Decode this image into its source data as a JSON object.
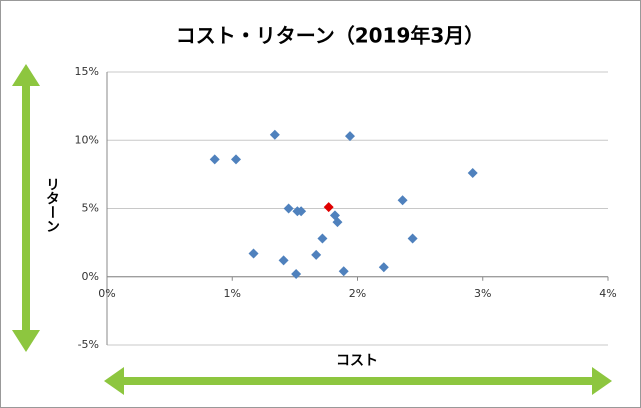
{
  "chart_data": {
    "type": "scatter",
    "title": "コスト・リターン（2019年3月）",
    "xlabel": "コスト",
    "ylabel": "リターン",
    "xlim": [
      0,
      4
    ],
    "xticks": [
      {
        "value": 0,
        "label": "0%"
      },
      {
        "value": 1,
        "label": "1%"
      },
      {
        "value": 2,
        "label": "2%"
      },
      {
        "value": 3,
        "label": "3%"
      },
      {
        "value": 4,
        "label": "4%"
      }
    ],
    "ylim": [
      -5,
      15
    ],
    "yticks": [
      {
        "value": -5,
        "label": "-5%"
      },
      {
        "value": 0,
        "label": "0%"
      },
      {
        "value": 5,
        "label": "5%"
      },
      {
        "value": 10,
        "label": "10%"
      },
      {
        "value": 15,
        "label": "15%"
      }
    ],
    "grid": true,
    "series": [
      {
        "color": "#4f81bd",
        "x": [
          0.86,
          1.03,
          1.34,
          1.94,
          2.92,
          1.17,
          1.41,
          1.51,
          1.45,
          1.52,
          1.55,
          1.67,
          1.72,
          1.82,
          1.84,
          1.89,
          2.21,
          2.36,
          2.44
        ],
        "values": [
          8.6,
          8.6,
          10.4,
          10.3,
          7.6,
          1.7,
          1.2,
          0.2,
          5.0,
          4.8,
          4.8,
          1.6,
          2.8,
          4.5,
          4.0,
          0.4,
          0.7,
          5.6,
          2.8
        ]
      },
      {
        "color": "#e00000",
        "x": [
          1.77
        ],
        "values": [
          5.1
        ]
      }
    ]
  }
}
